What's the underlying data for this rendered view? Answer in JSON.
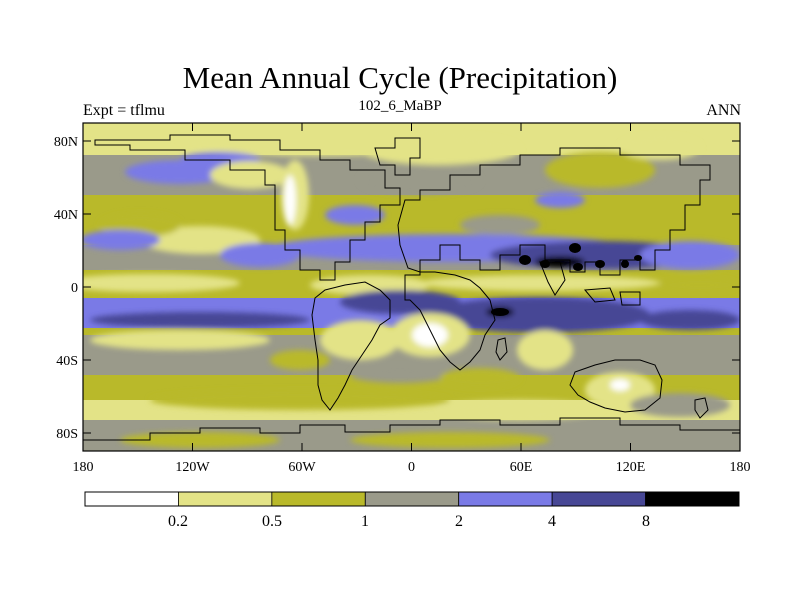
{
  "title": "Mean Annual Cycle (Precipitation)",
  "subtitle": "102_6_MaBP",
  "left_label": "Expt = tflmu",
  "right_label": "ANN",
  "lat_ticks": [
    "80N",
    "40N",
    "0",
    "40S",
    "80S"
  ],
  "lon_ticks": [
    "180",
    "120W",
    "60W",
    "0",
    "60E",
    "120E",
    "180"
  ],
  "colorbar": {
    "colors": [
      "#ffffff",
      "#e3e387",
      "#b9b92a",
      "#9a9a8a",
      "#7a7ae6",
      "#474795",
      "#000000"
    ],
    "labels": [
      "0.2",
      "0.5",
      "1",
      "2",
      "4",
      "8"
    ]
  }
}
